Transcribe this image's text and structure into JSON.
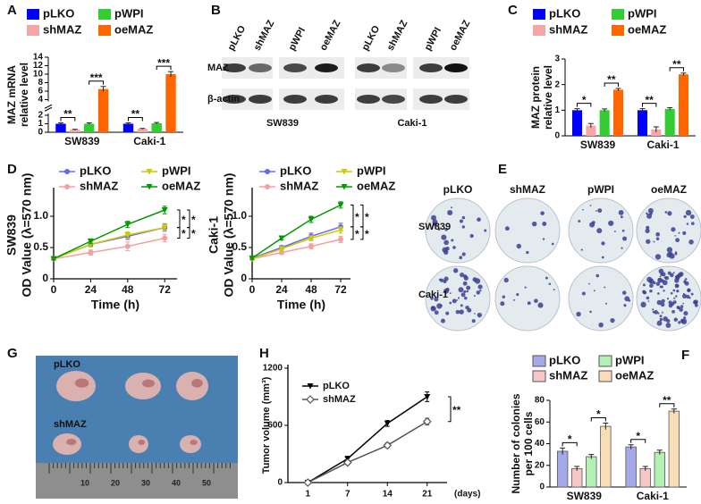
{
  "panel_labels": [
    "A",
    "B",
    "C",
    "D",
    "E",
    "F",
    "G",
    "H"
  ],
  "blot": {
    "lanes": [
      "pLKO",
      "shMAZ",
      "pWPI",
      "oeMAZ",
      "pLKO",
      "shMAZ",
      "pWPI",
      "oeMAZ"
    ],
    "rows": [
      "MAZ",
      "β-actin"
    ],
    "cell_lines": [
      "SW839",
      "Caki-1"
    ]
  },
  "colony": {
    "columns": [
      "pLKO",
      "shMAZ",
      "pWPI",
      "oeMAZ"
    ],
    "rows": [
      "SW839",
      "Caki-1"
    ]
  },
  "tumor": {
    "rows": [
      "pLKO",
      "shMAZ"
    ],
    "ruler": [
      "10",
      "20",
      "30",
      "40",
      "50"
    ]
  },
  "chart_data": [
    {
      "type": "bar",
      "ylabel": [
        "MAZ mRNA",
        "relative level"
      ],
      "categories": [
        "SW839",
        "Caki-1"
      ],
      "series": [
        {
          "name": "pLKO",
          "color": "#0000ff",
          "values": [
            1,
            1
          ],
          "errors": [
            0.1,
            0.1
          ]
        },
        {
          "name": "shMAZ",
          "color": "#f4a6a6",
          "values": [
            0.3,
            0.4
          ],
          "errors": [
            0.05,
            0.05
          ]
        },
        {
          "name": "pWPI",
          "color": "#33cc33",
          "values": [
            1,
            1.05
          ],
          "errors": [
            0.1,
            0.1
          ]
        },
        {
          "name": "oeMAZ",
          "color": "#ff6600",
          "values": [
            6.5,
            10
          ],
          "errors": [
            0.6,
            0.6
          ]
        }
      ],
      "ylim": [
        0,
        14
      ],
      "yticks": [
        0,
        1,
        2,
        4,
        6,
        8,
        10,
        12,
        14
      ],
      "axis_break": true,
      "annotations": [
        "**",
        "***",
        "**",
        "***"
      ]
    },
    {
      "type": "bar",
      "ylabel": [
        "MAZ protein",
        "relative level"
      ],
      "categories": [
        "SW839",
        "Caki-1"
      ],
      "series": [
        {
          "name": "pLKO",
          "color": "#0000ff",
          "values": [
            1,
            1
          ],
          "errors": [
            0.06,
            0.06
          ]
        },
        {
          "name": "shMAZ",
          "color": "#f4a6a6",
          "values": [
            0.4,
            0.25
          ],
          "errors": [
            0.08,
            0.1
          ]
        },
        {
          "name": "pWPI",
          "color": "#33cc33",
          "values": [
            1,
            1.05
          ],
          "errors": [
            0.05,
            0.05
          ]
        },
        {
          "name": "oeMAZ",
          "color": "#ff6600",
          "values": [
            1.8,
            2.4
          ],
          "errors": [
            0.05,
            0.05
          ]
        }
      ],
      "ylim": [
        0,
        3
      ],
      "yticks": [
        0,
        1,
        2,
        3
      ],
      "annotations": [
        "*",
        "**",
        "**",
        "**"
      ]
    },
    {
      "type": "line",
      "ylabel": [
        "SW839",
        "OD Value (λ=570 nm)"
      ],
      "xlabel": "Time (h)",
      "x": [
        0,
        24,
        48,
        72
      ],
      "xlim": [
        0,
        80
      ],
      "xticks": [
        0,
        24,
        48,
        72
      ],
      "ylim": [
        0,
        1.4
      ],
      "yticks": [
        0,
        0.5,
        {
          "value": 1,
          "label": "1.0"
        }
      ],
      "series": [
        {
          "name": "pLKO",
          "color": "#6666ff",
          "marker": "circle",
          "values": [
            0.32,
            0.55,
            0.68,
            0.82
          ],
          "errors": [
            0.02,
            0.04,
            0.05,
            0.06
          ]
        },
        {
          "name": "shMAZ",
          "color": "#f4a0a0",
          "marker": "circle",
          "values": [
            0.32,
            0.42,
            0.52,
            0.65
          ],
          "errors": [
            0.02,
            0.04,
            0.07,
            0.06
          ]
        },
        {
          "name": "pWPI",
          "color": "#cccc00",
          "marker": "triangle",
          "values": [
            0.32,
            0.55,
            0.7,
            0.82
          ],
          "errors": [
            0.02,
            0.04,
            0.05,
            0.05
          ]
        },
        {
          "name": "oeMAZ",
          "color": "#009900",
          "marker": "triangle",
          "values": [
            0.32,
            0.6,
            0.87,
            1.1
          ],
          "errors": [
            0.02,
            0.04,
            0.05,
            0.06
          ]
        }
      ],
      "annotations": [
        "*",
        "*",
        "*",
        "*"
      ]
    },
    {
      "type": "line",
      "ylabel": [
        "Caki-1",
        "OD Value (λ=570 nm)"
      ],
      "xlabel": "Time (h)",
      "x": [
        0,
        24,
        48,
        72
      ],
      "xlim": [
        0,
        80
      ],
      "xticks": [
        0,
        24,
        48,
        72
      ],
      "ylim": [
        0,
        1.4
      ],
      "yticks": [
        0,
        0.5,
        {
          "value": 1,
          "label": "1.0"
        }
      ],
      "series": [
        {
          "name": "pLKO",
          "color": "#6666ff",
          "marker": "circle",
          "values": [
            0.33,
            0.5,
            0.68,
            0.83
          ],
          "errors": [
            0.02,
            0.03,
            0.05,
            0.06
          ]
        },
        {
          "name": "shMAZ",
          "color": "#f4a0a0",
          "marker": "circle",
          "values": [
            0.32,
            0.42,
            0.52,
            0.63
          ],
          "errors": [
            0.02,
            0.03,
            0.04,
            0.05
          ]
        },
        {
          "name": "pWPI",
          "color": "#cccc00",
          "marker": "triangle",
          "values": [
            0.32,
            0.48,
            0.65,
            0.78
          ],
          "errors": [
            0.02,
            0.03,
            0.04,
            0.05
          ]
        },
        {
          "name": "oeMAZ",
          "color": "#009900",
          "marker": "triangle",
          "values": [
            0.33,
            0.65,
            0.95,
            1.18
          ],
          "errors": [
            0.02,
            0.03,
            0.05,
            0.05
          ]
        }
      ],
      "annotations": [
        "*",
        "*",
        "*",
        "*"
      ]
    },
    {
      "type": "line",
      "ylabel": "Tumor volume (mm³)",
      "xlabel": "(days)",
      "categories": [
        "1",
        "7",
        "14",
        "21"
      ],
      "ylim": [
        0,
        1200
      ],
      "yticks": [
        0,
        600,
        1200
      ],
      "series": [
        {
          "name": "pLKO",
          "color": "#000000",
          "marker": "triangle",
          "values": [
            0,
            250,
            620,
            900
          ],
          "errors": [
            0,
            25,
            30,
            50
          ]
        },
        {
          "name": "shMAZ",
          "color": "#555555",
          "marker": "diamond",
          "values": [
            0,
            210,
            390,
            640
          ],
          "errors": [
            0,
            20,
            25,
            35
          ]
        }
      ],
      "annotations": [
        "**"
      ]
    },
    {
      "type": "bar",
      "ylabel": [
        "Number of colonies",
        "per 100 cells"
      ],
      "categories": [
        "SW839",
        "Caki-1"
      ],
      "series": [
        {
          "name": "pLKO",
          "color": "#a6a9e8",
          "values": [
            33,
            37
          ],
          "errors": [
            3,
            2
          ]
        },
        {
          "name": "shMAZ",
          "color": "#f7c6c6",
          "values": [
            17,
            17
          ],
          "errors": [
            2,
            2
          ]
        },
        {
          "name": "pWPI",
          "color": "#b3f0b3",
          "values": [
            28,
            32
          ],
          "errors": [
            2,
            2
          ]
        },
        {
          "name": "oeMAZ",
          "color": "#f9dcb8",
          "values": [
            56,
            70
          ],
          "errors": [
            3,
            2
          ]
        }
      ],
      "ylim": [
        0,
        80
      ],
      "yticks": [
        0,
        20,
        40,
        60,
        80
      ],
      "annotations": [
        "*",
        "*",
        "*",
        "**"
      ]
    }
  ]
}
